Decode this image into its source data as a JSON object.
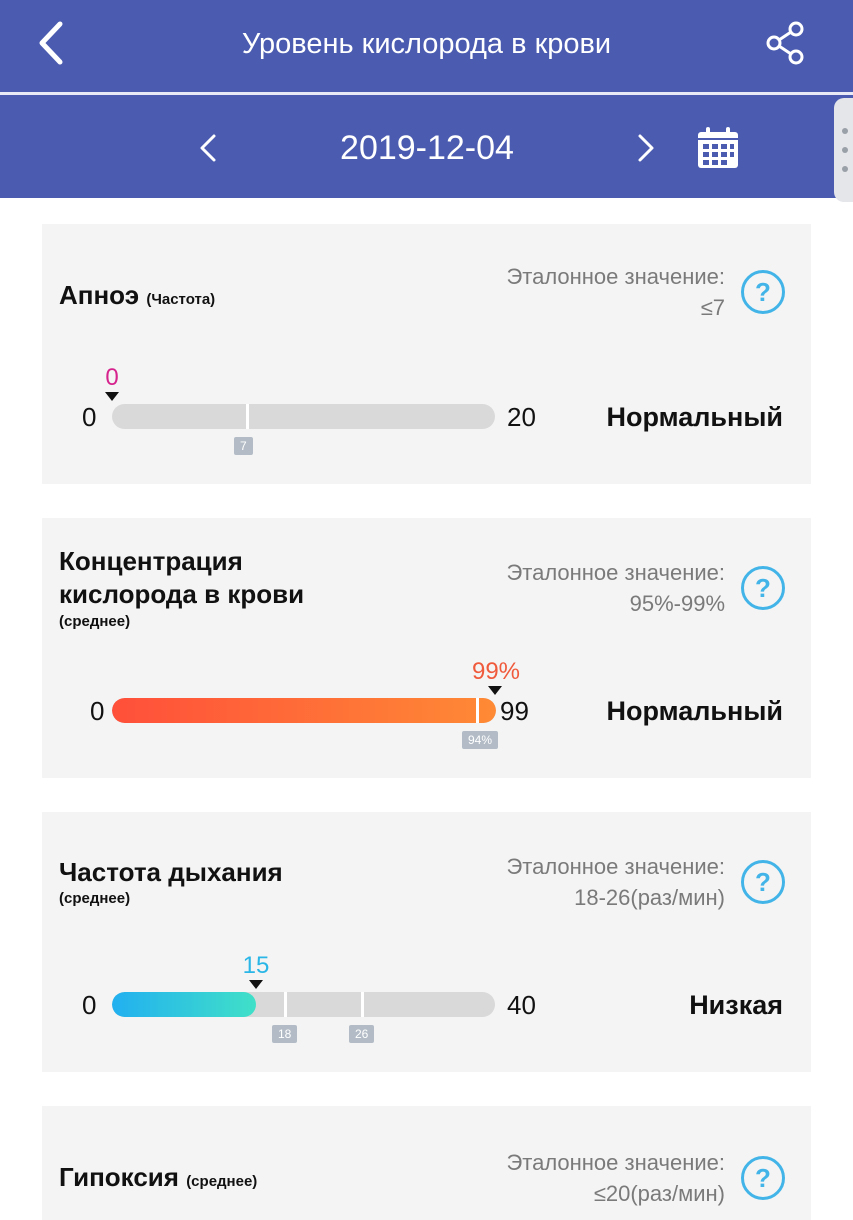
{
  "header": {
    "title": "Уровень кислорода в крови",
    "date": "2019-12-04",
    "icons": [
      "back-arrow-icon",
      "share-icon",
      "chevron-left-icon",
      "chevron-right-icon",
      "calendar-icon"
    ],
    "color": "#4a5bb0"
  },
  "metrics": [
    {
      "title": "Апноэ",
      "subtitle": "(Частота)",
      "ref_label": "Эталонное значение:",
      "ref_value": "≤7",
      "min": "0",
      "max": "20",
      "value_text": "0",
      "value": 0,
      "scale_max": 20,
      "tick_labels": [
        "7"
      ],
      "status": "Нормальный",
      "value_color": "#d6228c"
    },
    {
      "title_line1": "Концентрация",
      "title_line2": "кислорода в крови",
      "subtitle": "(среднее)",
      "ref_label": "Эталонное значение:",
      "ref_value": "95%-99%",
      "min": "0",
      "max": "99",
      "value_text": "99%",
      "value": 99,
      "scale_max": 99,
      "tick_labels": [
        "94%"
      ],
      "status": "Нормальный",
      "value_color": "#f05a3c"
    },
    {
      "title": "Частота дыхания",
      "subtitle": "(среднее)",
      "ref_label": "Эталонное значение:",
      "ref_value": "18-26(раз/мин)",
      "min": "0",
      "max": "40",
      "value_text": "15",
      "value": 15,
      "scale_max": 40,
      "tick_labels": [
        "18",
        "26"
      ],
      "status": "Низкая",
      "value_color": "#2ab6e6"
    },
    {
      "title": "Гипоксия",
      "subtitle": "(среднее)",
      "ref_label": "Эталонное значение:",
      "ref_value": "≤20(раз/мин)"
    }
  ],
  "help_glyph": "?"
}
